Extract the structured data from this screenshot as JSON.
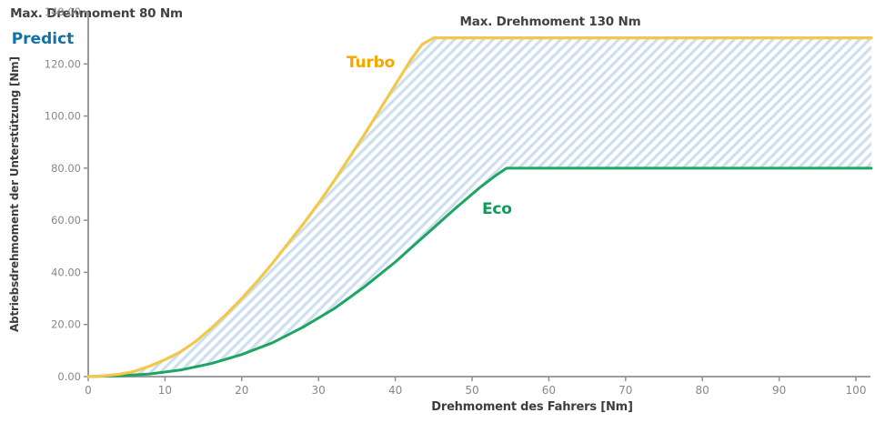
{
  "page": {
    "background": "#FFFFFF"
  },
  "chart_data": {
    "type": "line",
    "title": "",
    "xlabel": "Drehmoment des Fahrers [Nm]",
    "ylabel": "Abtriebsdrehmoment der Unterstützung [Nm]",
    "xlim": [
      0,
      102
    ],
    "ylim": [
      0,
      140
    ],
    "x_ticks": [
      0,
      10,
      20,
      30,
      40,
      50,
      60,
      70,
      80,
      90,
      100
    ],
    "y_ticks": [
      0,
      20,
      40,
      60,
      80,
      100,
      120,
      140
    ],
    "y_tick_labels": [
      "0.00",
      "20.00",
      "40.00",
      "60.00",
      "80.00",
      "100.00",
      "120.00",
      "140.00"
    ],
    "grid": false,
    "legend_position": "inline-curve-labels",
    "axis_color": "#8D9093",
    "tick_label_color": "#85888B",
    "axis_title_color": "#3B3E41",
    "series": [
      {
        "name": "Turbo",
        "max_torque_nm": 130,
        "plateau_start_x": 45,
        "color": "#F2C84B",
        "label_color": "#F7A600",
        "points": [
          [
            0,
            0
          ],
          [
            2,
            0.3
          ],
          [
            4,
            0.9
          ],
          [
            6,
            2
          ],
          [
            8,
            4
          ],
          [
            10,
            6.5
          ],
          [
            12,
            9.5
          ],
          [
            14,
            13.5
          ],
          [
            16,
            18.5
          ],
          [
            18,
            24
          ],
          [
            20,
            30
          ],
          [
            22,
            36.5
          ],
          [
            24,
            43.5
          ],
          [
            26,
            51
          ],
          [
            28,
            58.5
          ],
          [
            30,
            66.5
          ],
          [
            32,
            75
          ],
          [
            34,
            84
          ],
          [
            36,
            93
          ],
          [
            38,
            102.5
          ],
          [
            40,
            112
          ],
          [
            42,
            121.5
          ],
          [
            43.5,
            127.5
          ],
          [
            45,
            130
          ],
          [
            102,
            130
          ]
        ]
      },
      {
        "name": "Eco",
        "max_torque_nm": 80,
        "plateau_start_x": 54.5,
        "color": "#1EA562",
        "label_color": "#0D9B57",
        "points": [
          [
            0,
            0
          ],
          [
            4,
            0.3
          ],
          [
            8,
            1
          ],
          [
            12,
            2.5
          ],
          [
            16,
            5
          ],
          [
            20,
            8.5
          ],
          [
            24,
            13
          ],
          [
            28,
            19
          ],
          [
            32,
            26
          ],
          [
            36,
            34.5
          ],
          [
            40,
            44
          ],
          [
            44,
            54.5
          ],
          [
            48,
            65
          ],
          [
            51,
            72.5
          ],
          [
            53,
            77
          ],
          [
            54.5,
            80
          ],
          [
            102,
            80
          ]
        ]
      }
    ],
    "band": {
      "name": "Predict",
      "label_color": "#1272A8",
      "hatch_color": "#CBDFF0",
      "upper_series": "Turbo",
      "lower_series": "Eco"
    },
    "annotations": [
      {
        "id": "max-130",
        "text": "Max. Drehmoment 130 Nm",
        "color": "#3F4245"
      },
      {
        "id": "max-80",
        "text": "Max. Drehmoment 80 Nm",
        "color": "#3F4245"
      }
    ]
  }
}
